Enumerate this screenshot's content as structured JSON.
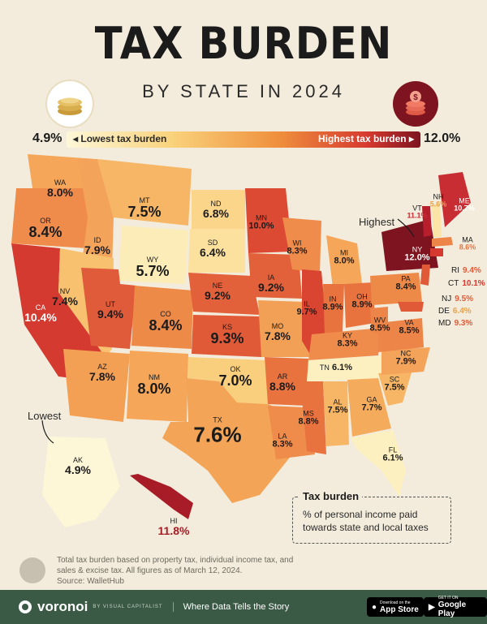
{
  "title": "TAX BURDEN",
  "subtitle": "BY STATE IN 2024",
  "legend": {
    "min_value": "4.9%",
    "max_value": "12.0%",
    "low_label": "Lowest tax burden",
    "high_label": "Highest tax burden",
    "scale_low_color": "#fdf7d8",
    "scale_high_color": "#7d1420"
  },
  "callouts": {
    "highest": "Highest",
    "lowest": "Lowest"
  },
  "legend_box": {
    "title": "Tax burden",
    "description": "% of personal income paid towards state and local taxes"
  },
  "states": {
    "WA": {
      "abbr": "WA",
      "value": "8.0%"
    },
    "OR": {
      "abbr": "OR",
      "value": "8.4%"
    },
    "CA": {
      "abbr": "CA",
      "value": "10.4%"
    },
    "ID": {
      "abbr": "ID",
      "value": "7.9%"
    },
    "NV": {
      "abbr": "NV",
      "value": "7.4%"
    },
    "MT": {
      "abbr": "MT",
      "value": "7.5%"
    },
    "WY": {
      "abbr": "WY",
      "value": "5.7%"
    },
    "UT": {
      "abbr": "UT",
      "value": "9.4%"
    },
    "AZ": {
      "abbr": "AZ",
      "value": "7.8%"
    },
    "CO": {
      "abbr": "CO",
      "value": "8.4%"
    },
    "NM": {
      "abbr": "NM",
      "value": "8.0%"
    },
    "ND": {
      "abbr": "ND",
      "value": "6.8%"
    },
    "SD": {
      "abbr": "SD",
      "value": "6.4%"
    },
    "NE": {
      "abbr": "NE",
      "value": "9.2%"
    },
    "KS": {
      "abbr": "KS",
      "value": "9.3%"
    },
    "OK": {
      "abbr": "OK",
      "value": "7.0%"
    },
    "TX": {
      "abbr": "TX",
      "value": "7.6%"
    },
    "MN": {
      "abbr": "MN",
      "value": "10.0%"
    },
    "IA": {
      "abbr": "IA",
      "value": "9.2%"
    },
    "MO": {
      "abbr": "MO",
      "value": "7.8%"
    },
    "AR": {
      "abbr": "AR",
      "value": "8.8%"
    },
    "LA": {
      "abbr": "LA",
      "value": "8.3%"
    },
    "WI": {
      "abbr": "WI",
      "value": "8.3%"
    },
    "IL": {
      "abbr": "IL",
      "value": "9.7%"
    },
    "MI": {
      "abbr": "MI",
      "value": "8.0%"
    },
    "IN": {
      "abbr": "IN",
      "value": "8.9%"
    },
    "OH": {
      "abbr": "OH",
      "value": "8.9%"
    },
    "KY": {
      "abbr": "KY",
      "value": "8.3%"
    },
    "TN": {
      "abbr": "TN",
      "value": "6.1%"
    },
    "MS": {
      "abbr": "MS",
      "value": "8.8%"
    },
    "AL": {
      "abbr": "AL",
      "value": "7.5%"
    },
    "GA": {
      "abbr": "GA",
      "value": "7.7%"
    },
    "FL": {
      "abbr": "FL",
      "value": "6.1%"
    },
    "SC": {
      "abbr": "SC",
      "value": "7.5%"
    },
    "NC": {
      "abbr": "NC",
      "value": "7.9%"
    },
    "VA": {
      "abbr": "VA",
      "value": "8.5%"
    },
    "WV": {
      "abbr": "WV",
      "value": "8.5%"
    },
    "PA": {
      "abbr": "PA",
      "value": "8.4%"
    },
    "NY": {
      "abbr": "NY",
      "value": "12.0%"
    },
    "VT": {
      "abbr": "VT",
      "value": "11.1%"
    },
    "NH": {
      "abbr": "NH",
      "value": "5.6%"
    },
    "ME": {
      "abbr": "ME",
      "value": "10.7%"
    },
    "MA": {
      "abbr": "MA",
      "value": "8.6%"
    },
    "RI": {
      "abbr": "RI",
      "value": "9.4%"
    },
    "CT": {
      "abbr": "CT",
      "value": "10.1%"
    },
    "NJ": {
      "abbr": "NJ",
      "value": "9.5%"
    },
    "DE": {
      "abbr": "DE",
      "value": "6.4%"
    },
    "MD": {
      "abbr": "MD",
      "value": "9.3%"
    },
    "AK": {
      "abbr": "AK",
      "value": "4.9%"
    },
    "HI": {
      "abbr": "HI",
      "value": "11.8%"
    }
  },
  "notes": "Total tax burden based on property tax, individual income tax, and sales & excise tax. All figures as of March 12, 2024.",
  "source": "Source: WalletHub",
  "footer": {
    "brand": "voronoi",
    "brand_sub": "BY VISUAL CAPITALIST",
    "tagline": "Where Data Tells the Story",
    "app_store_small": "Download on the",
    "app_store": "App Store",
    "google_play_small": "GET IT ON",
    "google_play": "Google Play"
  }
}
